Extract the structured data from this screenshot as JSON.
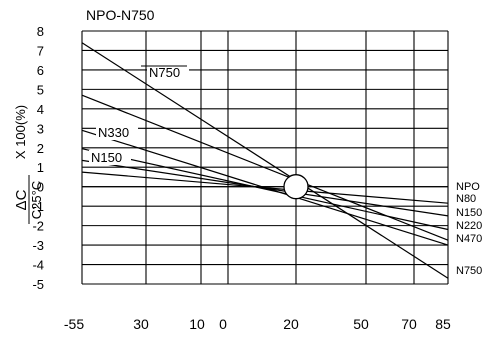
{
  "chart_data": {
    "type": "line",
    "title": "NPO-N750",
    "ylabel_rotated": "X 100(%)",
    "ylabel_fraction": {
      "numerator": "ΔC",
      "denominator": "C25°C"
    },
    "x_tick_labels": [
      "-55",
      "30",
      "10",
      "0",
      "20",
      "50",
      "70",
      "85"
    ],
    "y_tick_labels": [
      "8",
      "7",
      "6",
      "5",
      "4",
      "3",
      "2",
      "1",
      "0",
      "-1",
      "-2",
      "-3",
      "-4",
      "-5"
    ],
    "ylim": [
      -5,
      8
    ],
    "grid": true,
    "reference_point": {
      "x": "20",
      "y": 0
    },
    "series": [
      {
        "name": "NPO",
        "values": [
          {
            "x": "-55",
            "y": 0
          },
          {
            "x": "85",
            "y": 0
          }
        ]
      },
      {
        "name": "N80",
        "values": [
          {
            "x": "-55",
            "y": 0.75
          },
          {
            "x": "85",
            "y": -0.85
          }
        ]
      },
      {
        "name": "N150",
        "values": [
          {
            "x": "-55",
            "y": 1.35
          },
          {
            "x": "85",
            "y": -1.5
          }
        ]
      },
      {
        "name": "N220",
        "values": [
          {
            "x": "-55",
            "y": 1.95
          },
          {
            "x": "85",
            "y": -2.2
          }
        ]
      },
      {
        "name": "N330",
        "values": [
          {
            "x": "-55",
            "y": 2.9
          },
          {
            "x": "85",
            "y": -3.0
          }
        ]
      },
      {
        "name": "N470",
        "values": [
          {
            "x": "-55",
            "y": 4.7
          },
          {
            "x": "85",
            "y": -2.75
          }
        ]
      },
      {
        "name": "N750",
        "values": [
          {
            "x": "-55",
            "y": 7.4
          },
          {
            "x": "85",
            "y": -4.7
          }
        ]
      }
    ],
    "annotations": [
      "N750",
      "N330",
      "N150"
    ]
  }
}
